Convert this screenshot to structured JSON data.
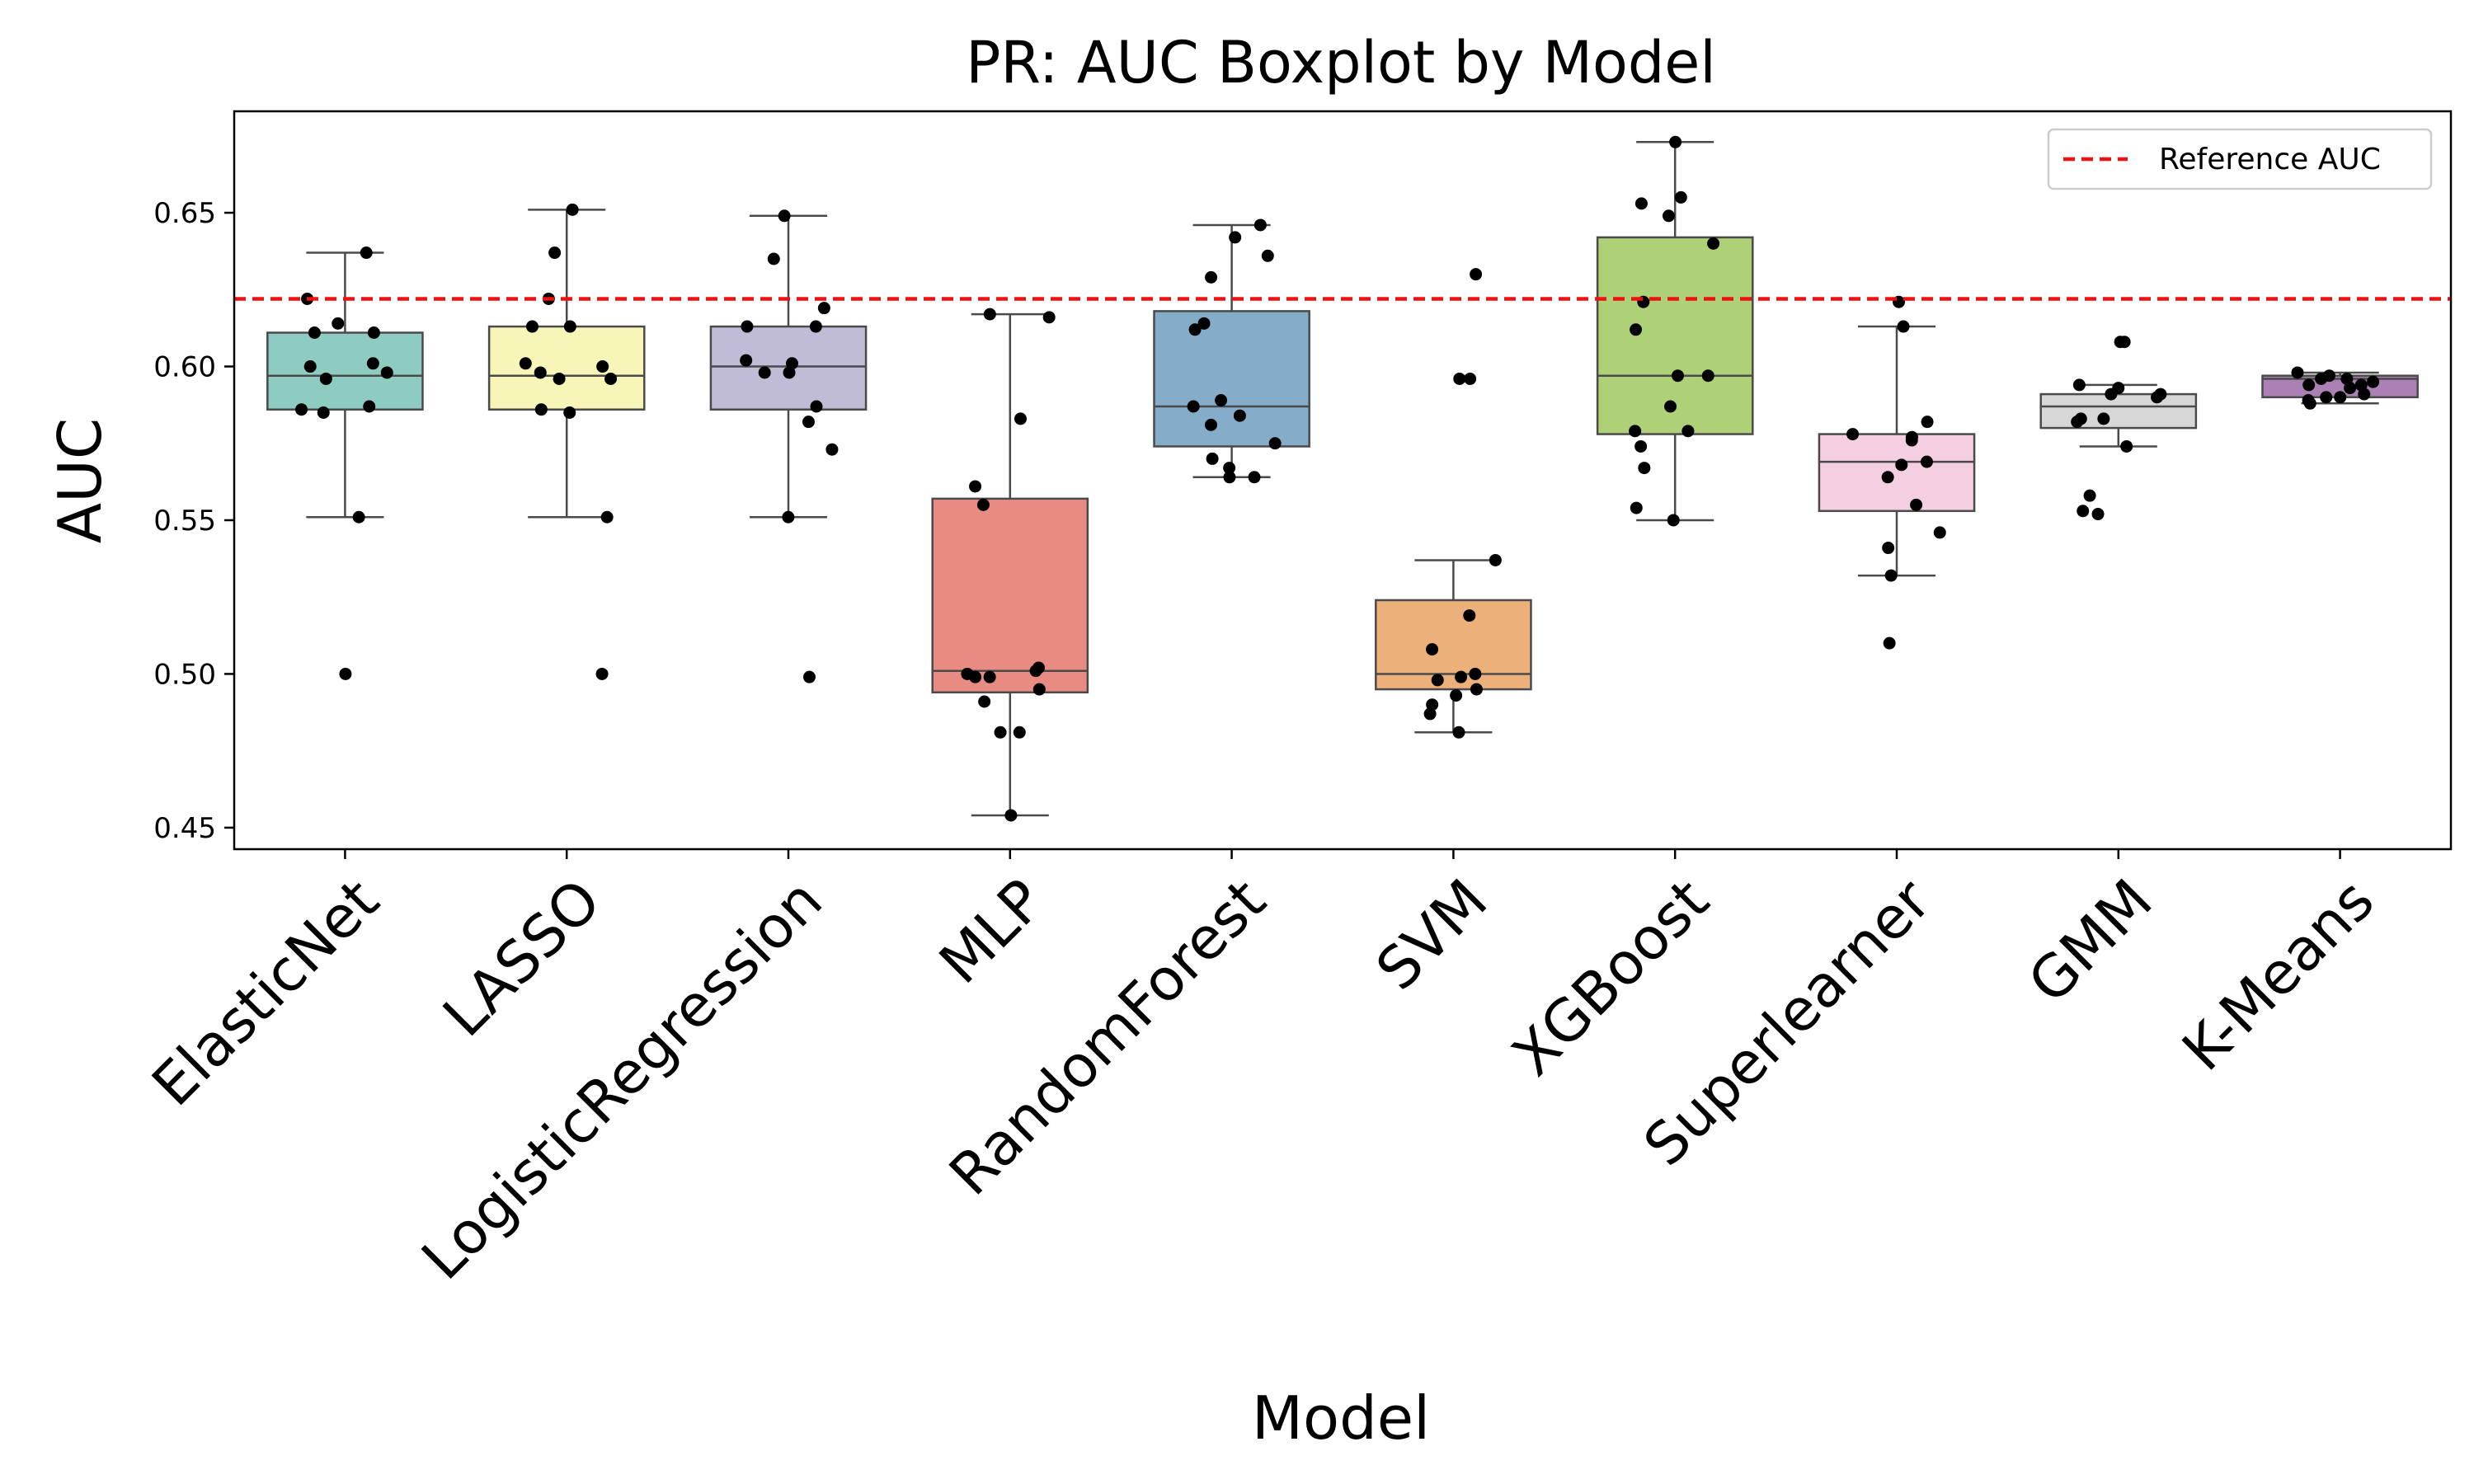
{
  "chart_data": {
    "type": "boxplot",
    "title": "PR: AUC Boxplot by Model",
    "xlabel": "Model",
    "ylabel": "AUC",
    "ylim": [
      0.443,
      0.683
    ],
    "yticks": [
      0.45,
      0.5,
      0.55,
      0.6,
      0.65
    ],
    "ytick_labels": [
      "0.45",
      "0.50",
      "0.55",
      "0.60",
      "0.65"
    ],
    "reference_line": {
      "value": 0.622,
      "label": "Reference AUC",
      "color": "#ee1111"
    },
    "legend_position": "top-right",
    "categories": [
      "ElasticNet",
      "LASSO",
      "LogisticRegression",
      "MLP",
      "RandomForest",
      "SVM",
      "XGBoost",
      "Superlearner",
      "GMM",
      "K-Means"
    ],
    "boxes": [
      {
        "name": "ElasticNet",
        "color": "#8ecbc1",
        "whisker_low": 0.551,
        "q1": 0.586,
        "median": 0.597,
        "q3": 0.611,
        "whisker_high": 0.637,
        "points": [
          0.637,
          0.622,
          0.614,
          0.611,
          0.611,
          0.601,
          0.6,
          0.598,
          0.596,
          0.587,
          0.586,
          0.585,
          0.551,
          0.5
        ]
      },
      {
        "name": "LASSO",
        "color": "#f7f5b7",
        "whisker_low": 0.551,
        "q1": 0.586,
        "median": 0.597,
        "q3": 0.613,
        "whisker_high": 0.651,
        "points": [
          0.651,
          0.637,
          0.622,
          0.613,
          0.613,
          0.601,
          0.6,
          0.598,
          0.596,
          0.596,
          0.586,
          0.585,
          0.551,
          0.5
        ]
      },
      {
        "name": "LogisticRegression",
        "color": "#c0bcd6",
        "whisker_low": 0.551,
        "q1": 0.586,
        "median": 0.6,
        "q3": 0.613,
        "whisker_high": 0.649,
        "points": [
          0.649,
          0.635,
          0.619,
          0.613,
          0.613,
          0.602,
          0.601,
          0.598,
          0.598,
          0.587,
          0.582,
          0.573,
          0.551,
          0.499
        ]
      },
      {
        "name": "MLP",
        "color": "#e88b82",
        "whisker_low": 0.454,
        "q1": 0.494,
        "median": 0.501,
        "q3": 0.557,
        "whisker_high": 0.617,
        "points": [
          0.617,
          0.616,
          0.583,
          0.561,
          0.555,
          0.502,
          0.501,
          0.5,
          0.499,
          0.499,
          0.495,
          0.491,
          0.481,
          0.481,
          0.454
        ]
      },
      {
        "name": "RandomForest",
        "color": "#85adca",
        "whisker_low": 0.564,
        "q1": 0.574,
        "median": 0.587,
        "q3": 0.618,
        "whisker_high": 0.646,
        "points": [
          0.646,
          0.642,
          0.636,
          0.629,
          0.614,
          0.612,
          0.589,
          0.587,
          0.584,
          0.581,
          0.575,
          0.57,
          0.567,
          0.564,
          0.564
        ]
      },
      {
        "name": "SVM",
        "color": "#ecb07a",
        "whisker_low": 0.481,
        "q1": 0.495,
        "median": 0.5,
        "q3": 0.524,
        "whisker_high": 0.537,
        "points": [
          0.63,
          0.596,
          0.596,
          0.537,
          0.519,
          0.508,
          0.5,
          0.499,
          0.498,
          0.495,
          0.493,
          0.49,
          0.487,
          0.481
        ]
      },
      {
        "name": "XGBoost",
        "color": "#aed178",
        "whisker_low": 0.55,
        "q1": 0.578,
        "median": 0.597,
        "q3": 0.642,
        "whisker_high": 0.673,
        "points": [
          0.673,
          0.655,
          0.653,
          0.649,
          0.64,
          0.621,
          0.612,
          0.597,
          0.597,
          0.587,
          0.579,
          0.579,
          0.574,
          0.567,
          0.554,
          0.55
        ]
      },
      {
        "name": "Superlearner",
        "color": "#f4cfe1",
        "whisker_low": 0.532,
        "q1": 0.553,
        "median": 0.569,
        "q3": 0.578,
        "whisker_high": 0.613,
        "points": [
          0.621,
          0.613,
          0.582,
          0.578,
          0.577,
          0.576,
          0.569,
          0.568,
          0.564,
          0.555,
          0.546,
          0.541,
          0.532,
          0.51
        ]
      },
      {
        "name": "GMM",
        "color": "#d7d7d7",
        "whisker_low": 0.574,
        "q1": 0.58,
        "median": 0.587,
        "q3": 0.591,
        "whisker_high": 0.594,
        "points": [
          0.608,
          0.608,
          0.594,
          0.593,
          0.591,
          0.591,
          0.59,
          0.583,
          0.583,
          0.582,
          0.574,
          0.558,
          0.553,
          0.552
        ]
      },
      {
        "name": "K-Means",
        "color": "#ab80b5",
        "whisker_low": 0.588,
        "q1": 0.59,
        "median": 0.596,
        "q3": 0.597,
        "whisker_high": 0.598,
        "points": [
          0.598,
          0.597,
          0.596,
          0.596,
          0.595,
          0.594,
          0.594,
          0.593,
          0.591,
          0.59,
          0.59,
          0.589,
          0.588
        ]
      }
    ]
  }
}
